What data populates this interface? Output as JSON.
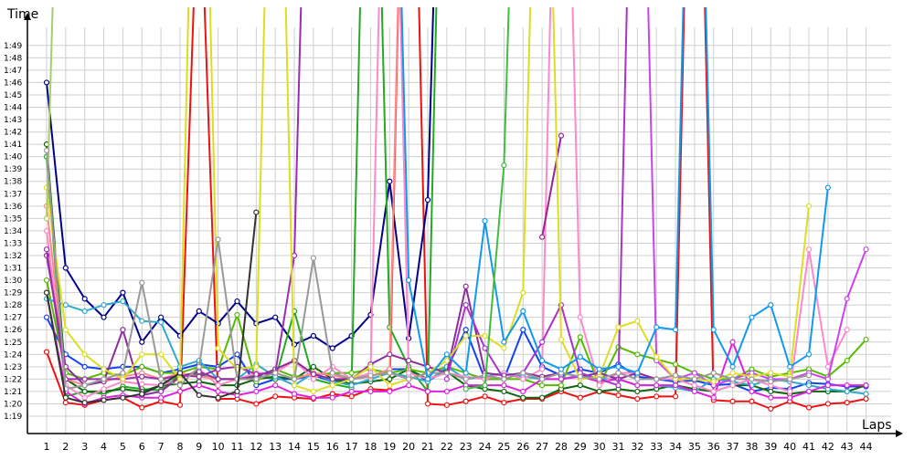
{
  "chart_data": {
    "type": "line",
    "xlabel": "Laps",
    "ylabel": "Time",
    "x": [
      1,
      2,
      3,
      4,
      5,
      6,
      7,
      8,
      9,
      10,
      11,
      12,
      13,
      14,
      15,
      16,
      17,
      18,
      19,
      20,
      21,
      22,
      23,
      24,
      25,
      26,
      27,
      28,
      29,
      30,
      31,
      32,
      33,
      34,
      35,
      36,
      37,
      38,
      39,
      40,
      41,
      42,
      43,
      44
    ],
    "yticks": [
      "1:19",
      "1:20",
      "1:21",
      "1:22",
      "1:23",
      "1:24",
      "1:25",
      "1:26",
      "1:27",
      "1:28",
      "1:29",
      "1:30",
      "1:31",
      "1:32",
      "1:33",
      "1:34",
      "1:35",
      "1:36",
      "1:37",
      "1:38",
      "1:39",
      "1:40",
      "1:41",
      "1:42",
      "1:43",
      "1:44",
      "1:45",
      "1:46",
      "1:47",
      "1:48",
      "1:49"
    ],
    "ylim": [
      78,
      151
    ],
    "grid": true,
    "series": [
      {
        "color": "#ee1111",
        "values": [
          84.2,
          80.1,
          79.9,
          80.3,
          80.5,
          79.7,
          80.2,
          79.9,
          125.0,
          80.4,
          80.4,
          80.0,
          80.6,
          80.5,
          80.4,
          80.8,
          80.6,
          81.2,
          81.1,
          150.0,
          80.0,
          79.9,
          80.2,
          80.6,
          80.1,
          80.4,
          80.4,
          81.0,
          80.5,
          81.0,
          80.7,
          80.4,
          80.6,
          80.6,
          150.0,
          80.3,
          80.2,
          80.2,
          79.6,
          80.2,
          79.7,
          80.0,
          80.1,
          80.4
        ]
      },
      {
        "color": "#000088",
        "values": [
          106.0,
          91.0,
          88.5,
          87.0,
          89.0,
          85.0,
          87.0,
          85.5,
          87.5,
          86.5,
          88.3,
          86.5,
          87.0,
          84.8,
          85.5,
          84.5,
          85.5,
          87.2,
          98.0,
          85.3,
          96.5,
          150.0,
          null,
          null,
          null,
          null,
          null,
          null,
          null,
          null,
          null,
          null,
          null,
          null,
          null,
          null,
          null,
          null,
          null,
          null,
          null,
          null,
          null,
          null
        ]
      },
      {
        "color": "#1144ee",
        "values": [
          87.0,
          84.0,
          83.0,
          82.8,
          83.0,
          83.0,
          82.5,
          82.8,
          83.2,
          83.0,
          84.0,
          81.5,
          82.0,
          82.0,
          82.3,
          81.8,
          82.0,
          82.2,
          82.8,
          82.8,
          81.8,
          82.8,
          86.0,
          82.0,
          82.0,
          86.0,
          83.0,
          82.3,
          82.8,
          82.5,
          83.2,
          82.2,
          82.0,
          81.8,
          81.9,
          81.5,
          81.6,
          81.0,
          81.3,
          81.2,
          81.7,
          81.6,
          81.4,
          81.4
        ]
      },
      {
        "color": "#22aa22",
        "values": [
          100.0,
          80.6,
          81.0,
          80.8,
          81.4,
          81.2,
          81.1,
          82.4,
          82.4,
          82.0,
          82.0,
          82.3,
          82.0,
          87.5,
          82.0,
          81.6,
          81.3,
          150.0,
          86.2,
          83.0,
          81.0,
          150.0,
          null,
          null,
          null,
          null,
          null,
          null,
          null,
          null,
          null,
          null,
          null,
          null,
          null,
          null,
          null,
          null,
          null,
          null,
          null,
          null,
          null,
          null
        ]
      },
      {
        "color": "#116611",
        "values": [
          101.0,
          82.0,
          81.0,
          81.0,
          81.2,
          81.0,
          81.5,
          81.6,
          81.8,
          81.5,
          81.5,
          82.0,
          82.2,
          82.0,
          83.0,
          82.0,
          81.6,
          81.8,
          82.0,
          82.8,
          82.0,
          82.6,
          81.5,
          81.2,
          81.0,
          80.5,
          80.5,
          81.2,
          81.5,
          81.0,
          81.2,
          81.0,
          81.2,
          81.5,
          81.2,
          81.0,
          81.5,
          81.5,
          81.0,
          80.8,
          81.0,
          81.0,
          81.0,
          81.5
        ]
      },
      {
        "color": "#55bb00",
        "values": [
          90.0,
          82.5,
          82.0,
          82.5,
          82.3,
          83.0,
          82.5,
          82.5,
          83.0,
          82.8,
          87.2,
          81.8,
          82.8,
          82.2,
          82.3,
          82.5,
          82.5,
          82.8,
          82.5,
          82.8,
          82.5,
          83.0,
          82.5,
          82.0,
          82.0,
          82.0,
          81.5,
          81.5,
          85.4,
          81.5,
          84.6,
          84.0,
          83.6,
          83.2,
          82.5,
          82.0,
          82.0,
          82.8,
          82.2,
          82.5,
          82.8,
          82.2,
          83.5,
          85.2
        ]
      },
      {
        "color": "#33aacc",
        "values": [
          88.5,
          88.0,
          87.5,
          88.0,
          88.3,
          86.7,
          86.6,
          83.0,
          83.5,
          82.0,
          82.0,
          83.2,
          82.2,
          81.5,
          82.5,
          81.8,
          81.5,
          82.0,
          82.5,
          82.2,
          81.8,
          83.0,
          82.0,
          82.2,
          82.5,
          82.2,
          82.0,
          82.0,
          82.3,
          82.0,
          82.0,
          81.5,
          81.5,
          81.3,
          81.0,
          82.0,
          81.8,
          81.5,
          82.0,
          81.8,
          81.5,
          81.2,
          81.0,
          80.8
        ]
      },
      {
        "color": "#dd22dd",
        "values": [
          89.0,
          81.0,
          80.0,
          80.5,
          80.7,
          80.5,
          80.5,
          81.0,
          81.5,
          81.0,
          80.7,
          81.0,
          81.5,
          80.8,
          80.5,
          80.5,
          81.0,
          81.0,
          81.0,
          81.5,
          81.0,
          81.0,
          81.5,
          81.5,
          81.5,
          81.0,
          82.0,
          82.0,
          82.2,
          81.8,
          82.0,
          81.5,
          81.5,
          81.5,
          81.0,
          80.5,
          85.0,
          81.0,
          80.5,
          80.5,
          81.0,
          81.5,
          81.5,
          81.5
        ]
      },
      {
        "color": "#ff88cc",
        "values": [
          94.0,
          81.5,
          80.5,
          81.2,
          81.8,
          81.6,
          81.5,
          82.0,
          82.8,
          81.5,
          82.0,
          82.5,
          82.5,
          83.5,
          82.0,
          83.0,
          82.0,
          82.5,
          150.0,
          82.5,
          82.0,
          82.5,
          82.2,
          82.0,
          82.5,
          82.0,
          82.8,
          150.0,
          87.0,
          81.5,
          82.5,
          82.5,
          82.0,
          82.0,
          81.5,
          81.0,
          81.5,
          82.0,
          81.5,
          81.0,
          92.5,
          83.0,
          86.0,
          null
        ]
      },
      {
        "color": "#ff8888",
        "values": [
          96.0,
          82.0,
          81.5,
          81.8,
          82.2,
          82.5,
          82.0,
          82.5,
          82.2,
          82.0,
          82.0,
          82.0,
          82.5,
          82.0,
          82.5,
          82.3,
          82.0,
          82.2,
          82.8,
          150.0,
          null,
          null,
          null,
          null,
          null,
          null,
          null,
          null,
          null,
          null,
          null,
          null,
          null,
          null,
          null,
          null,
          null,
          null,
          null,
          null,
          null,
          null,
          null,
          null
        ]
      },
      {
        "color": "#8b2e9b",
        "values": [
          92.0,
          83.0,
          81.5,
          81.8,
          86.0,
          80.7,
          81.0,
          82.2,
          82.6,
          82.0,
          82.0,
          82.2,
          82.8,
          83.5,
          82.4,
          82.0,
          82.0,
          83.2,
          84.0,
          83.5,
          83.0,
          82.5,
          89.5,
          82.5,
          82.3,
          82.5,
          82.2,
          82.5,
          82.2,
          82.5,
          82.0,
          82.5,
          82.0,
          82.3,
          null,
          null,
          null,
          null,
          null,
          null,
          null,
          null,
          null,
          null
        ]
      },
      {
        "color": "#9b2eb0",
        "values": [
          92.5,
          82.0,
          82.0,
          82.0,
          82.0,
          82.2,
          82.0,
          82.3,
          82.2,
          82.8,
          83.0,
          82.4,
          82.5,
          92.0,
          150.0,
          null,
          null,
          null,
          null,
          null,
          null,
          null,
          null,
          null,
          null,
          null,
          null,
          null,
          null,
          null,
          null,
          null,
          null,
          null,
          null,
          null,
          null,
          null,
          null,
          null,
          null,
          null,
          null,
          null
        ]
      },
      {
        "color": "#aa33cc",
        "values": [
          null,
          null,
          null,
          null,
          null,
          null,
          null,
          null,
          null,
          null,
          null,
          null,
          null,
          null,
          null,
          null,
          null,
          null,
          null,
          null,
          null,
          82.0,
          88.0,
          84.5,
          82.0,
          82.5,
          85.0,
          88.0,
          82.5,
          82.0,
          81.5,
          150.0,
          null,
          null,
          null,
          null,
          null,
          null,
          null,
          null,
          null,
          null,
          null,
          null
        ]
      },
      {
        "color": "#cc44ee",
        "values": [
          null,
          null,
          null,
          null,
          null,
          null,
          null,
          null,
          null,
          null,
          null,
          null,
          null,
          null,
          null,
          null,
          null,
          null,
          null,
          null,
          null,
          null,
          null,
          null,
          null,
          null,
          null,
          null,
          null,
          null,
          null,
          150.0,
          83.5,
          82.0,
          82.5,
          81.5,
          82.0,
          82.5,
          82.0,
          82.0,
          82.5,
          82.0,
          88.5,
          92.5
        ]
      },
      {
        "color": "#992299",
        "values": [
          null,
          null,
          null,
          null,
          null,
          null,
          null,
          null,
          null,
          null,
          null,
          null,
          null,
          null,
          null,
          null,
          null,
          null,
          null,
          null,
          null,
          null,
          null,
          null,
          null,
          null,
          93.5,
          101.7,
          null,
          null,
          null,
          null,
          null,
          null,
          null,
          null,
          null,
          null,
          null,
          null,
          null,
          null,
          null,
          null
        ]
      },
      {
        "color": "#dddd22",
        "values": [
          97.5,
          86.0,
          84.0,
          82.8,
          82.0,
          84.0,
          84.0,
          82.0,
          150.0,
          84.5,
          82.8,
          83.0,
          150.0,
          81.5,
          81.0,
          81.5,
          82.0,
          83.0,
          81.5,
          82.0,
          82.5,
          83.5,
          85.5,
          85.5,
          84.5,
          89.0,
          150.0,
          85.2,
          82.0,
          82.2,
          86.2,
          86.7,
          83.8,
          82.0,
          82.0,
          81.8,
          82.5,
          82.2,
          82.5,
          82.2,
          96.0,
          null,
          null,
          null
        ]
      },
      {
        "color": "#aacc66",
        "values": [
          95.0,
          149.0,
          null,
          null,
          null,
          null,
          null,
          null,
          null,
          null,
          null,
          null,
          null,
          null,
          null,
          null,
          null,
          null,
          null,
          null,
          null,
          null,
          null,
          null,
          null,
          null,
          null,
          null,
          null,
          null,
          null,
          null,
          null,
          null,
          null,
          null,
          null,
          null,
          null,
          null,
          null,
          null,
          null,
          null
        ]
      },
      {
        "color": "#999999",
        "values": [
          100.5,
          81.2,
          81.5,
          82.0,
          82.5,
          89.8,
          82.0,
          81.5,
          83.0,
          93.3,
          82.0,
          82.0,
          82.5,
          82.0,
          91.8,
          82.5,
          82.0,
          82.3,
          82.5,
          82.0,
          82.5,
          82.5,
          82.0,
          82.3,
          82.0,
          82.5,
          82.0,
          82.5,
          82.2,
          82.0,
          82.5,
          82.0,
          82.0,
          82.3,
          82.0,
          82.5,
          82.0,
          82.0,
          81.8,
          82.0,
          82.3,
          null,
          null,
          null
        ]
      },
      {
        "color": "#333333",
        "values": [
          89.0,
          80.5,
          80.1,
          80.3,
          80.5,
          80.8,
          81.5,
          82.5,
          80.7,
          80.5,
          81.0,
          95.5,
          null,
          null,
          null,
          null,
          null,
          null,
          null,
          null,
          null,
          null,
          null,
          null,
          null,
          null,
          null,
          null,
          null,
          null,
          null,
          null,
          null,
          null,
          null,
          null,
          null,
          null,
          null,
          null,
          null,
          null,
          null,
          null
        ]
      },
      {
        "color": "#1199ee",
        "values": [
          null,
          null,
          null,
          null,
          null,
          null,
          null,
          null,
          null,
          null,
          null,
          null,
          null,
          null,
          null,
          null,
          null,
          150.0,
          150.0,
          90.0,
          82.0,
          84.0,
          82.5,
          94.8,
          85.0,
          87.5,
          83.5,
          82.8,
          83.8,
          82.8,
          83.0,
          82.5,
          86.2,
          86.0,
          150.0,
          86.0,
          83.0,
          87.0,
          88.0,
          83.0,
          84.0,
          97.5,
          null,
          null
        ]
      },
      {
        "color": "#006600",
        "values": [
          null,
          null,
          null,
          null,
          null,
          null,
          null,
          null,
          null,
          null,
          null,
          null,
          null,
          null,
          null,
          null,
          null,
          null,
          null,
          null,
          null,
          null,
          null,
          null,
          null,
          null,
          null,
          null,
          null,
          null,
          null,
          null,
          null,
          null,
          null,
          null,
          null,
          null,
          null,
          null,
          null,
          null,
          null,
          null
        ]
      },
      {
        "color": "#44bb44",
        "values": [
          null,
          null,
          null,
          null,
          null,
          null,
          null,
          null,
          null,
          null,
          null,
          null,
          null,
          null,
          null,
          null,
          null,
          null,
          null,
          null,
          null,
          null,
          81.2,
          81.5,
          99.3,
          150.0,
          null,
          null,
          null,
          null,
          null,
          null,
          null,
          null,
          null,
          null,
          null,
          null,
          null,
          null,
          null,
          null,
          null,
          null
        ]
      }
    ]
  }
}
